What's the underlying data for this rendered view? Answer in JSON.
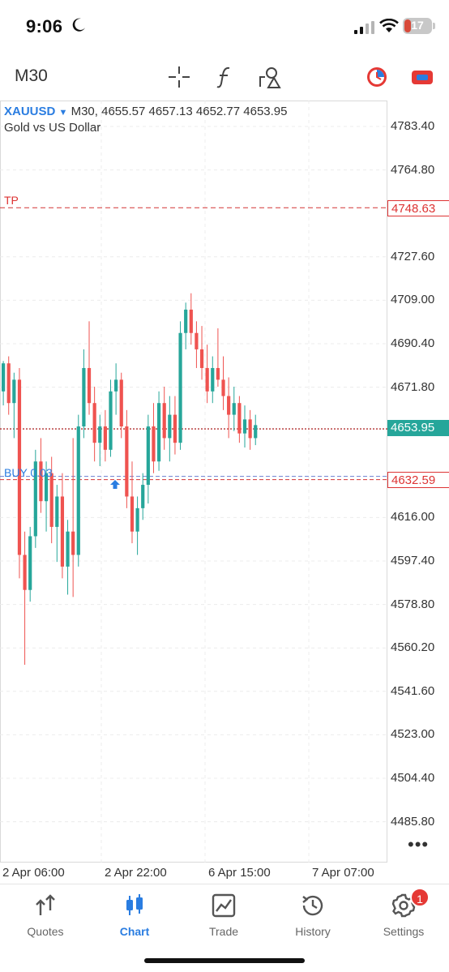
{
  "status_bar": {
    "time": "9:06",
    "battery": "17",
    "icons": [
      "moon-icon",
      "cellular-signal-icon",
      "wifi-icon",
      "battery-icon"
    ]
  },
  "toolbar": {
    "timeframe": "M30",
    "icons": [
      "crosshair-icon",
      "indicators-icon",
      "objects-icon",
      "trade-clock-icon",
      "one-click-trading-icon"
    ]
  },
  "chart": {
    "symbol": "XAUUSD",
    "period": "M30",
    "ohlc": "4655.57 4657.13 4652.77 4653.95",
    "description": "Gold vs US Dollar",
    "tp_label": "TP",
    "buy_label": "BUY 0.03",
    "tp_price": "4748.63",
    "current_price": "4653.95",
    "buy_price": "4632.59",
    "price_ticks": [
      "4783.40",
      "4764.80",
      "4727.60",
      "4709.00",
      "4690.40",
      "4671.80",
      "4616.00",
      "4597.40",
      "4578.80",
      "4560.20",
      "4541.60",
      "4523.00",
      "4504.40",
      "4485.80"
    ],
    "time_labels": [
      "2 Apr 06:00",
      "2 Apr 22:00",
      "6 Apr 15:00",
      "7 Apr 07:00"
    ],
    "colors": {
      "bull": "#26a69a",
      "bear": "#ef5350",
      "tp": "#d33333",
      "buy": "#2a7de1"
    },
    "more_icon": "more-dots-icon"
  },
  "chart_data": {
    "type": "candlestick",
    "symbol": "XAUUSD",
    "timeframe": "M30",
    "ylim": [
      4478,
      4792
    ],
    "y_ticks": [
      4783.4,
      4764.8,
      4727.6,
      4709.0,
      4690.4,
      4671.8,
      4616.0,
      4597.4,
      4578.8,
      4560.2,
      4541.6,
      4523.0,
      4504.4,
      4485.8
    ],
    "x_tick_labels": [
      "2 Apr 06:00",
      "2 Apr 22:00",
      "6 Apr 15:00",
      "7 Apr 07:00"
    ],
    "levels": {
      "take_profit": 4748.63,
      "current": 4653.95,
      "buy_entry": 4632.59
    },
    "candles": [
      {
        "o": 4670,
        "h": 4683,
        "l": 4664,
        "c": 4682
      },
      {
        "o": 4682,
        "h": 4685,
        "l": 4660,
        "c": 4665
      },
      {
        "o": 4665,
        "h": 4678,
        "l": 4650,
        "c": 4675
      },
      {
        "o": 4675,
        "h": 4680,
        "l": 4590,
        "c": 4600
      },
      {
        "o": 4600,
        "h": 4610,
        "l": 4553,
        "c": 4585
      },
      {
        "o": 4585,
        "h": 4612,
        "l": 4580,
        "c": 4608
      },
      {
        "o": 4608,
        "h": 4645,
        "l": 4603,
        "c": 4640
      },
      {
        "o": 4640,
        "h": 4650,
        "l": 4618,
        "c": 4623
      },
      {
        "o": 4623,
        "h": 4640,
        "l": 4610,
        "c": 4635
      },
      {
        "o": 4635,
        "h": 4642,
        "l": 4605,
        "c": 4612
      },
      {
        "o": 4612,
        "h": 4630,
        "l": 4597,
        "c": 4625
      },
      {
        "o": 4625,
        "h": 4635,
        "l": 4590,
        "c": 4595
      },
      {
        "o": 4595,
        "h": 4615,
        "l": 4583,
        "c": 4610
      },
      {
        "o": 4610,
        "h": 4650,
        "l": 4582,
        "c": 4600
      },
      {
        "o": 4600,
        "h": 4660,
        "l": 4595,
        "c": 4655
      },
      {
        "o": 4655,
        "h": 4688,
        "l": 4650,
        "c": 4680
      },
      {
        "o": 4680,
        "h": 4700,
        "l": 4660,
        "c": 4665
      },
      {
        "o": 4665,
        "h": 4672,
        "l": 4640,
        "c": 4648
      },
      {
        "o": 4648,
        "h": 4660,
        "l": 4638,
        "c": 4655
      },
      {
        "o": 4655,
        "h": 4662,
        "l": 4640,
        "c": 4645
      },
      {
        "o": 4645,
        "h": 4675,
        "l": 4642,
        "c": 4670
      },
      {
        "o": 4670,
        "h": 4682,
        "l": 4660,
        "c": 4675
      },
      {
        "o": 4675,
        "h": 4678,
        "l": 4650,
        "c": 4655
      },
      {
        "o": 4655,
        "h": 4662,
        "l": 4620,
        "c": 4625
      },
      {
        "o": 4625,
        "h": 4640,
        "l": 4605,
        "c": 4610
      },
      {
        "o": 4610,
        "h": 4625,
        "l": 4600,
        "c": 4620
      },
      {
        "o": 4620,
        "h": 4635,
        "l": 4615,
        "c": 4630
      },
      {
        "o": 4630,
        "h": 4660,
        "l": 4622,
        "c": 4655
      },
      {
        "o": 4655,
        "h": 4665,
        "l": 4635,
        "c": 4640
      },
      {
        "o": 4640,
        "h": 4670,
        "l": 4636,
        "c": 4665
      },
      {
        "o": 4665,
        "h": 4672,
        "l": 4645,
        "c": 4650
      },
      {
        "o": 4650,
        "h": 4668,
        "l": 4640,
        "c": 4660
      },
      {
        "o": 4660,
        "h": 4668,
        "l": 4643,
        "c": 4648
      },
      {
        "o": 4648,
        "h": 4700,
        "l": 4645,
        "c": 4695
      },
      {
        "o": 4695,
        "h": 4708,
        "l": 4688,
        "c": 4705
      },
      {
        "o": 4705,
        "h": 4712,
        "l": 4690,
        "c": 4695
      },
      {
        "o": 4695,
        "h": 4700,
        "l": 4680,
        "c": 4688
      },
      {
        "o": 4688,
        "h": 4698,
        "l": 4675,
        "c": 4680
      },
      {
        "o": 4680,
        "h": 4690,
        "l": 4665,
        "c": 4670
      },
      {
        "o": 4670,
        "h": 4685,
        "l": 4665,
        "c": 4680
      },
      {
        "o": 4680,
        "h": 4697,
        "l": 4672,
        "c": 4675
      },
      {
        "o": 4675,
        "h": 4685,
        "l": 4662,
        "c": 4668
      },
      {
        "o": 4668,
        "h": 4676,
        "l": 4650,
        "c": 4660
      },
      {
        "o": 4660,
        "h": 4672,
        "l": 4653,
        "c": 4665
      },
      {
        "o": 4665,
        "h": 4668,
        "l": 4648,
        "c": 4652
      },
      {
        "o": 4652,
        "h": 4664,
        "l": 4646,
        "c": 4658
      },
      {
        "o": 4658,
        "h": 4662,
        "l": 4645,
        "c": 4650
      },
      {
        "o": 4650,
        "h": 4660,
        "l": 4647,
        "c": 4655.57
      }
    ]
  },
  "nav": {
    "items": [
      {
        "label": "Quotes",
        "icon": "quotes-arrows-icon"
      },
      {
        "label": "Chart",
        "icon": "candlestick-chart-icon"
      },
      {
        "label": "Trade",
        "icon": "trade-chart-icon"
      },
      {
        "label": "History",
        "icon": "history-clock-icon"
      },
      {
        "label": "Settings",
        "icon": "settings-gear-icon"
      }
    ],
    "settings_badge": "1"
  }
}
